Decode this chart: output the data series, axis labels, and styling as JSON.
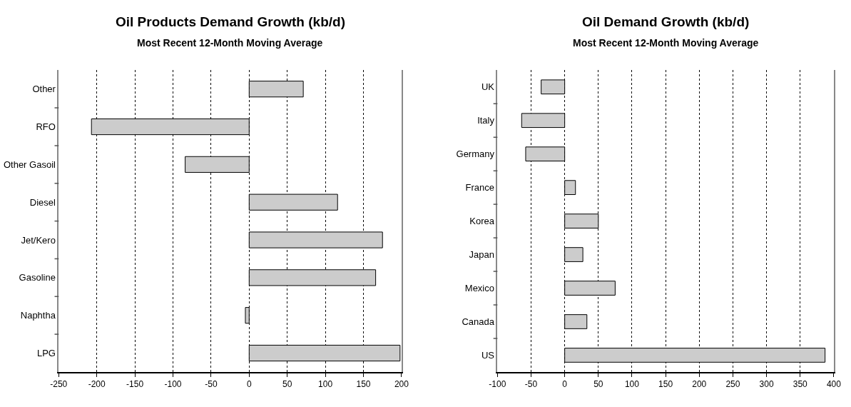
{
  "chart_data": [
    {
      "type": "bar",
      "orientation": "horizontal",
      "title": "Oil Products Demand Growth (kb/d)",
      "subtitle": "Most Recent 12-Month Moving Average",
      "categories": [
        "Other",
        "RFO",
        "Other Gasoil",
        "Diesel",
        "Jet/Kero",
        "Gasoline",
        "Naphtha",
        "LPG"
      ],
      "values": [
        71,
        -207,
        -84,
        116,
        175,
        166,
        -5,
        198
      ],
      "color": "#cccccc",
      "xlim": [
        -250,
        200
      ],
      "xticks": [
        -250,
        -200,
        -150,
        -100,
        -50,
        0,
        50,
        100,
        150,
        200
      ],
      "grid": "x"
    },
    {
      "type": "bar",
      "orientation": "horizontal",
      "title": "Oil Demand Growth (kb/d)",
      "subtitle": "Most Recent 12-Month Moving Average",
      "categories": [
        "UK",
        "Italy",
        "Germany",
        "France",
        "Korea",
        "Japan",
        "Mexico",
        "Canada",
        "US"
      ],
      "values": [
        -35,
        -64,
        -58,
        16,
        50,
        27,
        75,
        33,
        387
      ],
      "color": "#cccccc",
      "xlim": [
        -100,
        400
      ],
      "xticks": [
        -100,
        -50,
        0,
        50,
        100,
        150,
        200,
        250,
        300,
        350,
        400
      ],
      "grid": "x"
    }
  ]
}
